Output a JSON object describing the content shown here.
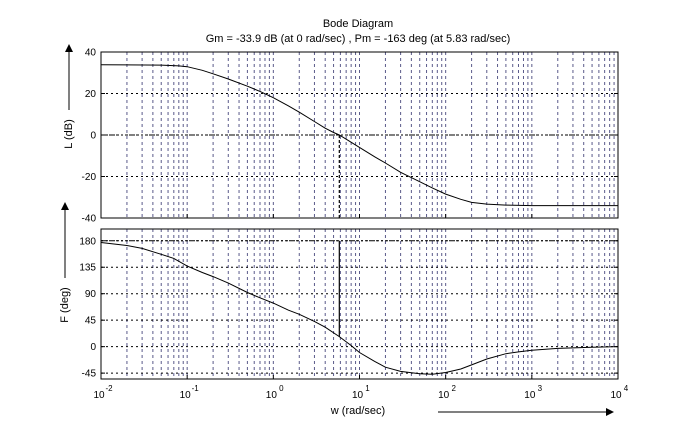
{
  "figure": {
    "title": "Bode Diagram",
    "subtitle": "Gm = -33.9 dB (at 0 rad/sec) ,  Pm = -163 deg (at 5.83 rad/sec)"
  },
  "chart_data": [
    {
      "type": "line",
      "name": "magnitude",
      "ylabel": "L (dB)",
      "xscale": "log",
      "xlim": [
        0.01,
        10000
      ],
      "ylim": [
        -40,
        40
      ],
      "yticks": [
        "40",
        "20",
        "0",
        "-20",
        "-40"
      ],
      "grid": true,
      "reference_y": 0,
      "crossover_x": 5.83,
      "series": [
        {
          "x": [
            0.01,
            0.02,
            0.05,
            0.08,
            0.1,
            0.15,
            0.2,
            0.3,
            0.5,
            0.7,
            1,
            1.5,
            2,
            3,
            4,
            5,
            5.83,
            7,
            10,
            15,
            20,
            30,
            50,
            70,
            100,
            150,
            200,
            300,
            500,
            1000,
            2000,
            5000,
            10000
          ],
          "y": [
            33.9,
            33.8,
            33.7,
            33.3,
            32.9,
            31.2,
            29.5,
            27,
            23.5,
            21,
            18,
            14,
            11,
            6.5,
            3.3,
            1.2,
            0,
            -2,
            -6,
            -10.5,
            -13.5,
            -18,
            -22.5,
            -25.5,
            -28.5,
            -31,
            -32.5,
            -33.3,
            -33.8,
            -34,
            -34,
            -34,
            -34
          ]
        }
      ]
    },
    {
      "type": "line",
      "name": "phase",
      "ylabel": "F (deg)",
      "xlabel": "w  (rad/sec)",
      "xscale": "log",
      "xlim": [
        0.01,
        10000
      ],
      "ylim": [
        -55,
        200
      ],
      "yticks": [
        "180",
        "135",
        "90",
        "45",
        "0",
        "-45"
      ],
      "xticks": [
        {
          "base": "10",
          "exp": "-2"
        },
        {
          "base": "10",
          "exp": "-1"
        },
        {
          "base": "10",
          "exp": "0"
        },
        {
          "base": "10",
          "exp": "1"
        },
        {
          "base": "10",
          "exp": "2"
        },
        {
          "base": "10",
          "exp": "3"
        },
        {
          "base": "10",
          "exp": "4"
        }
      ],
      "grid": true,
      "reference_y": 180,
      "crossover_x": 5.83,
      "series": [
        {
          "x": [
            0.01,
            0.02,
            0.03,
            0.05,
            0.07,
            0.1,
            0.15,
            0.2,
            0.3,
            0.5,
            0.7,
            1,
            1.5,
            2,
            3,
            4,
            5.83,
            8,
            10,
            15,
            20,
            30,
            50,
            70,
            100,
            150,
            200,
            300,
            500,
            700,
            1000,
            2000,
            5000,
            10000
          ],
          "y": [
            177,
            172,
            167,
            157,
            150,
            137,
            126,
            119,
            108,
            92,
            83,
            74,
            62,
            55,
            43,
            33,
            17,
            2,
            -10,
            -25,
            -35,
            -42,
            -46,
            -47,
            -44,
            -38,
            -31,
            -21,
            -12,
            -9,
            -6,
            -3,
            -1,
            0
          ]
        }
      ]
    }
  ]
}
